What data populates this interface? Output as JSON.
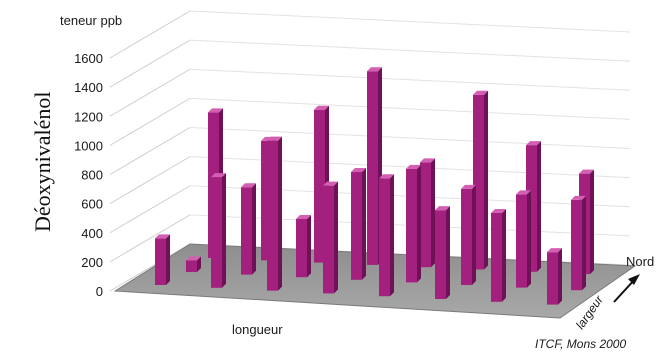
{
  "chart_data": {
    "type": "bar",
    "ylabel": "Déoxynivalénol",
    "zlabel": "teneur ppb",
    "xlabel": "longueur",
    "depth_label": "largeur",
    "direction_label": "Nord",
    "source": "ITCF, Mons 2000",
    "ylim": [
      0,
      1600
    ],
    "yticks": [
      "0",
      "200",
      "400",
      "600",
      "800",
      "1000",
      "1200",
      "1400",
      "1600"
    ],
    "bar_color": "#a3207f",
    "floor_color": "#9a9a9a",
    "rows": [
      {
        "row": "back",
        "values": [
          1000,
          820,
          1050,
          1330,
          720,
          1200,
          870,
          690
        ]
      },
      {
        "row": "middle",
        "values": [
          80,
          600,
          400,
          740,
          780,
          660,
          640,
          620
        ]
      },
      {
        "row": "front",
        "values": [
          320,
          760,
          1030,
          740,
          810,
          610,
          610,
          360
        ]
      }
    ]
  }
}
